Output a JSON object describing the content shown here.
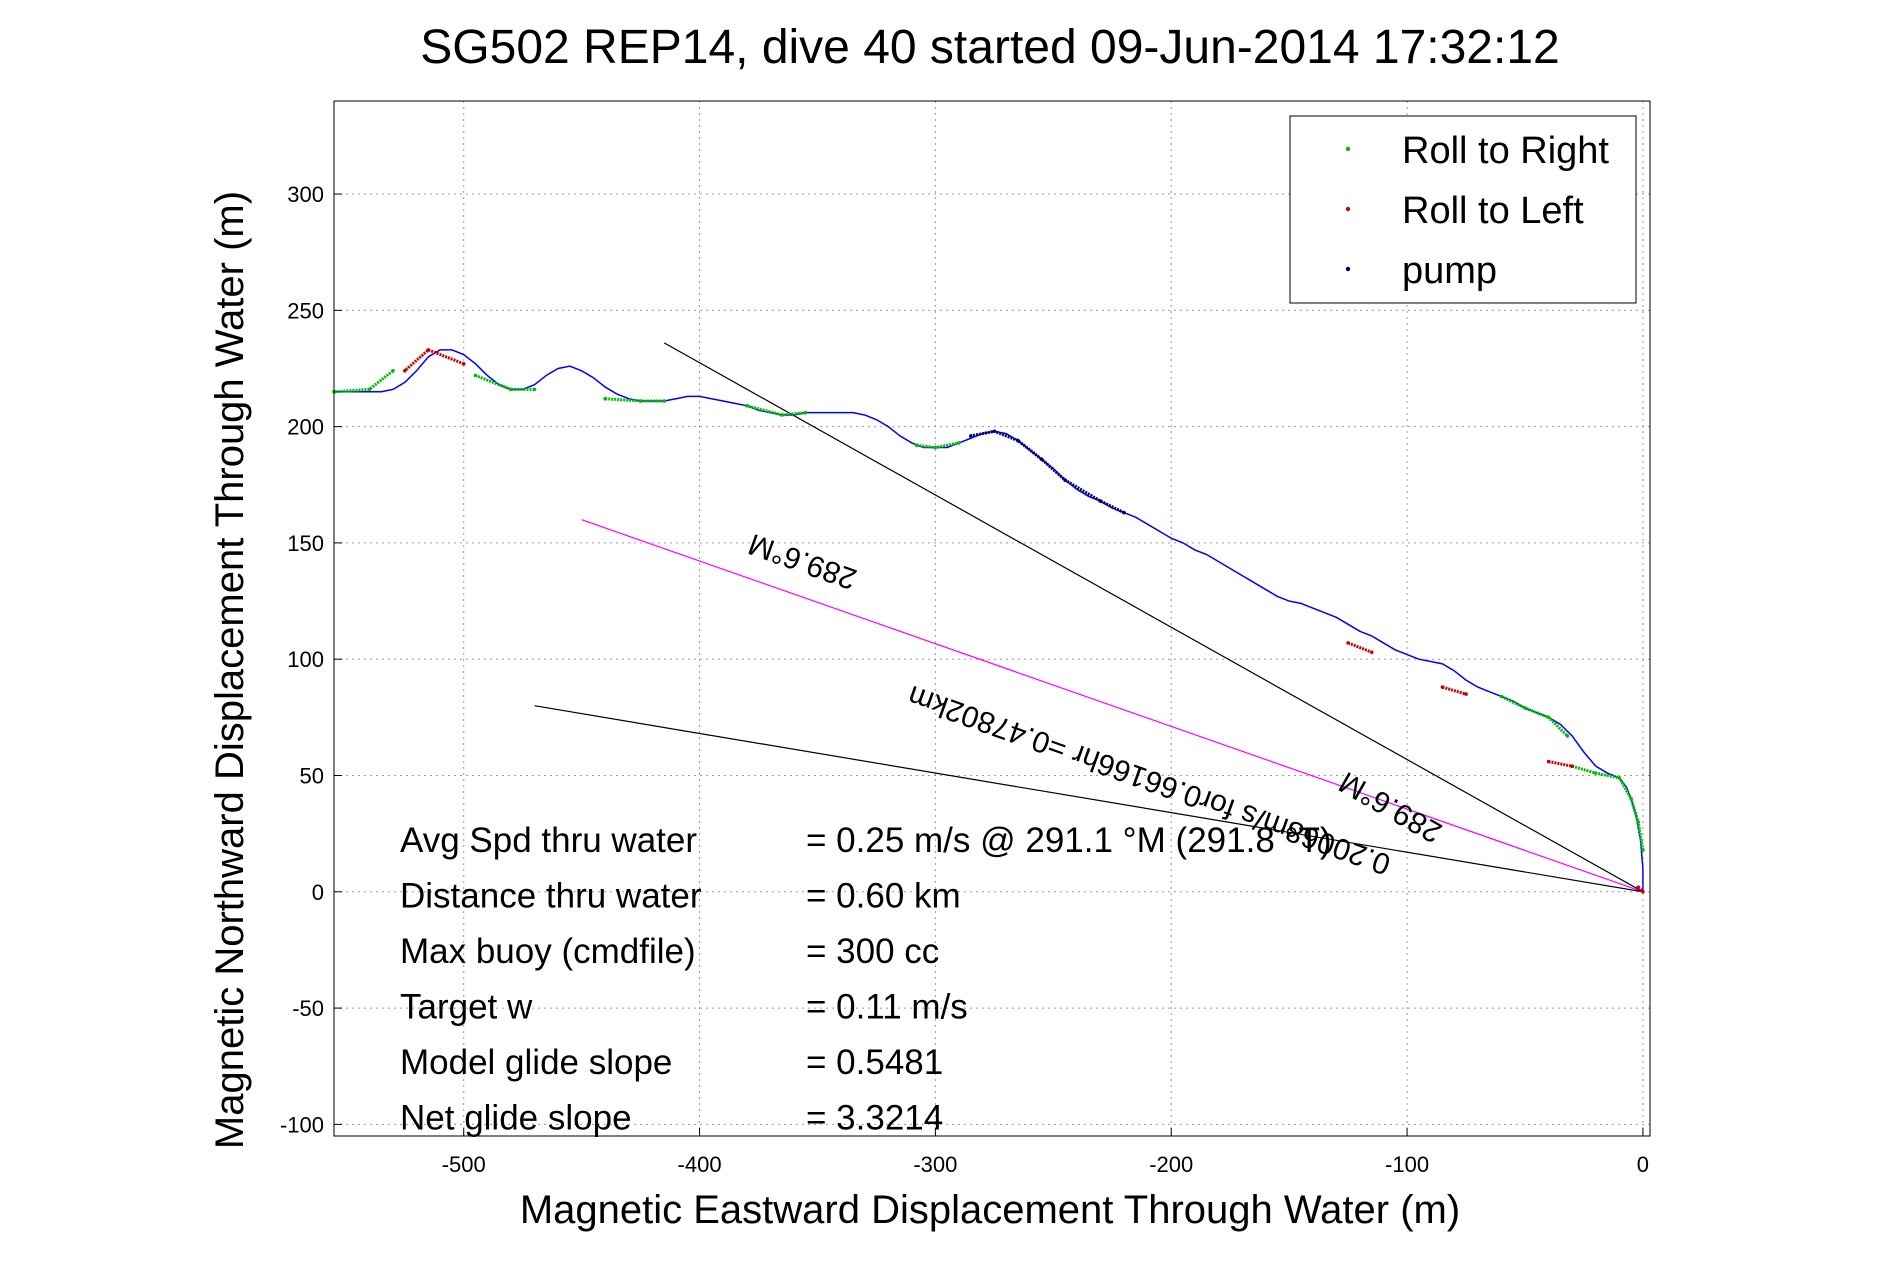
{
  "chart_data": {
    "type": "line",
    "title": "SG502 REP14, dive 40 started 09-Jun-2014 17:32:12",
    "xlabel": "Magnetic Eastward Displacement Through Water (m)",
    "ylabel": "Magnetic Northward Displacement Through Water (m)",
    "xlim": [
      -555,
      3
    ],
    "ylim": [
      -105,
      340
    ],
    "x_ticks": [
      -500,
      -400,
      -300,
      -200,
      -100,
      0
    ],
    "y_ticks": [
      -100,
      -50,
      0,
      50,
      100,
      150,
      200,
      250,
      300
    ],
    "grid": true,
    "legend_position": "top-right",
    "colors": {
      "track": "#0000ff",
      "roll_right": "#00bb00",
      "roll_left": "#cc0000",
      "pump": "#000066",
      "avg_heading_line": "#ff00ff",
      "reference_lines": "#000000"
    },
    "legend": [
      {
        "label": "Roll to Right",
        "color": "#00bb00"
      },
      {
        "label": "Roll to Left",
        "color": "#cc0000"
      },
      {
        "label": "pump",
        "color": "#000066"
      }
    ],
    "track": {
      "x": [
        0,
        0,
        -1,
        -3,
        -5,
        -7,
        -10,
        -15,
        -20,
        -25,
        -30,
        -35,
        -40,
        -45,
        -50,
        -55,
        -60,
        -65,
        -70,
        -75,
        -80,
        -85,
        -90,
        -95,
        -100,
        -105,
        -110,
        -115,
        -120,
        -125,
        -130,
        -135,
        -140,
        -145,
        -150,
        -155,
        -160,
        -165,
        -170,
        -175,
        -180,
        -185,
        -190,
        -195,
        -200,
        -205,
        -210,
        -215,
        -220,
        -225,
        -230,
        -235,
        -240,
        -245,
        -250,
        -255,
        -260,
        -265,
        -270,
        -275,
        -280,
        -285,
        -290,
        -295,
        -300,
        -305,
        -310,
        -315,
        -320,
        -325,
        -330,
        -335,
        -340,
        -345,
        -350,
        -355,
        -360,
        -365,
        -370,
        -375,
        -380,
        -385,
        -390,
        -395,
        -400,
        -405,
        -410,
        -415,
        -420,
        -425,
        -430,
        -435,
        -440,
        -445,
        -450,
        -455,
        -460,
        -465,
        -470,
        -475,
        -480,
        -485,
        -490,
        -495,
        -500,
        -505,
        -510,
        -515,
        -520,
        -525,
        -530,
        -535,
        -540,
        -545,
        -550,
        -555
      ],
      "y": [
        0,
        10,
        22,
        33,
        40,
        45,
        49,
        51,
        54,
        60,
        67,
        72,
        75,
        77,
        79,
        82,
        84,
        86,
        88,
        91,
        95,
        98,
        99,
        100,
        102,
        104,
        107,
        110,
        112,
        115,
        118,
        120,
        122,
        124,
        125,
        127,
        130,
        133,
        136,
        139,
        142,
        145,
        147,
        150,
        152,
        155,
        158,
        161,
        163,
        165,
        168,
        170,
        173,
        177,
        182,
        186,
        190,
        194,
        197,
        198,
        197,
        195,
        193,
        191,
        191,
        191,
        193,
        196,
        200,
        203,
        205,
        206,
        206,
        206,
        206,
        206,
        205,
        205,
        206,
        207,
        209,
        210,
        211,
        212,
        213,
        213,
        212,
        211,
        211,
        211,
        212,
        214,
        217,
        221,
        224,
        226,
        225,
        222,
        218,
        216,
        216,
        218,
        222,
        227,
        231,
        233,
        233,
        230,
        224,
        219,
        216,
        215,
        215,
        215,
        215,
        215
      ]
    },
    "roll_right_segments": [
      [
        [
          -30,
          54
        ],
        [
          -20,
          51
        ],
        [
          -10,
          49
        ],
        [
          -5,
          40
        ],
        [
          -2,
          30
        ],
        [
          0,
          18
        ]
      ],
      [
        [
          -60,
          84
        ],
        [
          -50,
          79
        ],
        [
          -40,
          75
        ],
        [
          -32,
          67
        ]
      ],
      [
        [
          -308,
          192
        ],
        [
          -300,
          191
        ],
        [
          -290,
          193
        ]
      ],
      [
        [
          -355,
          206
        ],
        [
          -365,
          205
        ],
        [
          -380,
          209
        ]
      ],
      [
        [
          -415,
          211
        ],
        [
          -425,
          211
        ],
        [
          -440,
          212
        ]
      ],
      [
        [
          -470,
          216
        ],
        [
          -480,
          216
        ],
        [
          -495,
          222
        ]
      ],
      [
        [
          -530,
          224
        ],
        [
          -540,
          216
        ],
        [
          -555,
          215
        ]
      ]
    ],
    "roll_left_segments": [
      [
        [
          -2,
          2
        ],
        [
          0,
          0
        ]
      ],
      [
        [
          -40,
          56
        ],
        [
          -30,
          54
        ]
      ],
      [
        [
          -85,
          88
        ],
        [
          -75,
          85
        ]
      ],
      [
        [
          -125,
          107
        ],
        [
          -115,
          103
        ]
      ],
      [
        [
          -500,
          227
        ],
        [
          -515,
          233
        ],
        [
          -525,
          224
        ]
      ]
    ],
    "pump_segment": [
      [
        -220,
        163
      ],
      [
        -230,
        168
      ],
      [
        -245,
        177
      ],
      [
        -255,
        186
      ],
      [
        -265,
        194
      ],
      [
        -275,
        198
      ],
      [
        -285,
        196
      ]
    ],
    "heading_lines": [
      {
        "x1": 0,
        "y1": 0,
        "x2": -450,
        "y2": 160,
        "color": "#ff00ff"
      },
      {
        "x1": 0,
        "y1": 0,
        "x2": -415,
        "y2": 236,
        "color": "#000000"
      },
      {
        "x1": 0,
        "y1": 0,
        "x2": -470,
        "y2": 80,
        "color": "#000000"
      }
    ],
    "annotations": [
      {
        "text": "289.6°M",
        "x": -355,
        "y": 146,
        "angle_deg": 199.6
      },
      {
        "text": "0.20068m/s for0.66166hr =0.47802km",
        "x": -208,
        "y": 52,
        "angle_deg": 199.6
      },
      {
        "text": "289.6°M",
        "x": -105,
        "y": 40,
        "angle_deg": 209.6
      }
    ],
    "stats": [
      {
        "label": "Avg Spd thru water",
        "value": "=  0.25 m/s @ 291.1 °M (291.8 °T)"
      },
      {
        "label": "Distance thru water",
        "value": "=  0.60 km"
      },
      {
        "label": "Max buoy (cmdfile)",
        "value": "= 300 cc"
      },
      {
        "label": "Target w",
        "value": "= 0.11 m/s"
      },
      {
        "label": "Model glide slope",
        "value": "= 0.5481"
      },
      {
        "label": "Net glide slope",
        "value": "= 3.3214"
      }
    ]
  }
}
